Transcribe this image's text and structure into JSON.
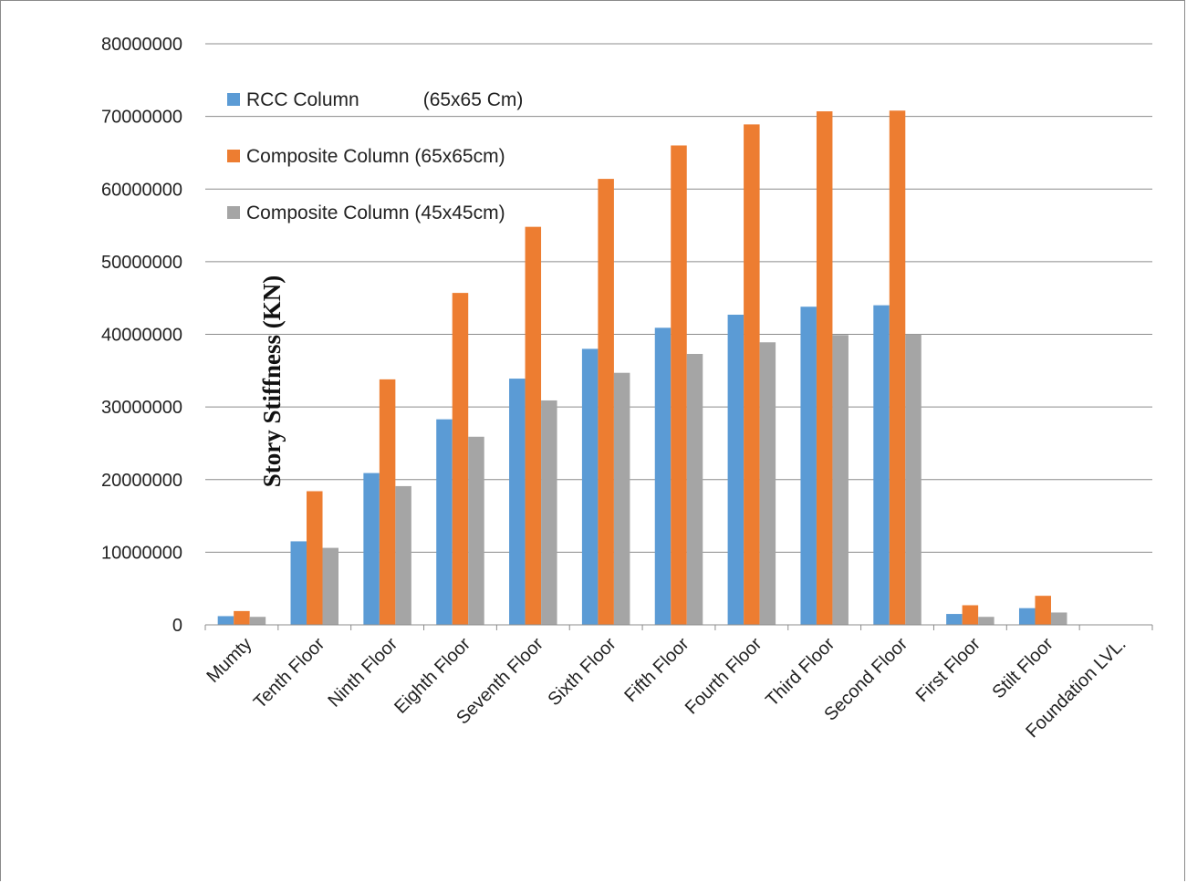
{
  "chart_data": {
    "type": "bar",
    "title": "",
    "xlabel": "",
    "ylabel": "Story Stiffness (KN)",
    "ylim": [
      0,
      80000000
    ],
    "yticks": [
      0,
      10000000,
      20000000,
      30000000,
      40000000,
      50000000,
      60000000,
      70000000,
      80000000
    ],
    "ytick_labels": [
      "0",
      "10000000",
      "20000000",
      "30000000",
      "40000000",
      "50000000",
      "60000000",
      "70000000",
      "80000000"
    ],
    "grid": "horizontal",
    "legend_position": "top-left inside",
    "categories": [
      "Mumty",
      "Tenth Floor",
      "Ninth Floor",
      "Eighth Floor",
      "Seventh Floor",
      "Sixth Floor",
      "Fifth Floor",
      "Fourth Floor",
      "Third Floor",
      "Second Floor",
      "First Floor",
      "Stilt Floor",
      "Foundation LVL."
    ],
    "series": [
      {
        "name": "RCC Column            (65x65 Cm)",
        "color": "#5b9bd5",
        "values": [
          1200000,
          11500000,
          20900000,
          28300000,
          33900000,
          38000000,
          40900000,
          42700000,
          43800000,
          44000000,
          1500000,
          2300000,
          0
        ]
      },
      {
        "name": "Composite Column (65x65cm)",
        "color": "#ed7d31",
        "values": [
          1900000,
          18400000,
          33800000,
          45700000,
          54800000,
          61400000,
          66000000,
          68900000,
          70700000,
          70800000,
          2700000,
          4000000,
          0
        ]
      },
      {
        "name": "Composite Column (45x45cm)",
        "color": "#a5a5a5",
        "values": [
          1100000,
          10600000,
          19100000,
          25900000,
          30900000,
          34700000,
          37300000,
          38900000,
          39900000,
          40000000,
          1100000,
          1700000,
          0
        ]
      }
    ]
  }
}
